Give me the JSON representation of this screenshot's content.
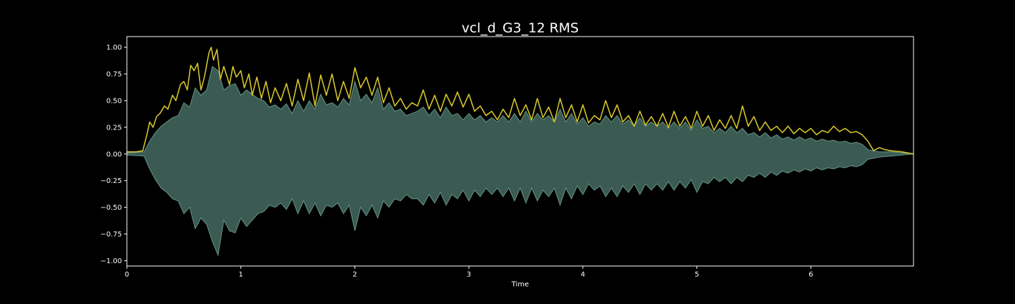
{
  "chart_data": {
    "type": "line",
    "title": "vcl_d_G3_12 RMS",
    "xlabel": "Time",
    "ylabel": "",
    "xlim": [
      0,
      6.9
    ],
    "ylim": [
      -1.05,
      1.1
    ],
    "xticks": [
      0,
      1,
      2,
      3,
      4,
      5,
      6
    ],
    "xtick_labels": [
      "0",
      "1",
      "2",
      "3",
      "4",
      "5",
      "6"
    ],
    "yticks": [
      -1.0,
      -0.75,
      -0.5,
      -0.25,
      0.0,
      0.25,
      0.5,
      0.75,
      1.0
    ],
    "ytick_labels": [
      "−1.00",
      "−0.75",
      "−0.50",
      "−0.25",
      "0.00",
      "0.25",
      "0.50",
      "0.75",
      "1.00"
    ],
    "grid": false,
    "background": "#000000",
    "colors": {
      "waveform_fill": "#3b5a52",
      "waveform_edge": "#6fa898",
      "rms_line": "#d4c42a",
      "axes": "#ffffff"
    },
    "series": [
      {
        "kind": "waveform",
        "x": [
          0,
          0.15,
          0.2,
          0.25,
          0.3,
          0.35,
          0.4,
          0.45,
          0.5,
          0.55,
          0.6,
          0.65,
          0.7,
          0.75,
          0.8,
          0.85,
          0.9,
          0.95,
          1.0,
          1.05,
          1.1,
          1.15,
          1.2,
          1.25,
          1.3,
          1.35,
          1.4,
          1.45,
          1.5,
          1.55,
          1.6,
          1.65,
          1.7,
          1.75,
          1.8,
          1.85,
          1.9,
          1.95,
          2.0,
          2.05,
          2.1,
          2.15,
          2.2,
          2.25,
          2.3,
          2.35,
          2.4,
          2.45,
          2.5,
          2.55,
          2.6,
          2.65,
          2.7,
          2.75,
          2.8,
          2.85,
          2.9,
          2.95,
          3.0,
          3.05,
          3.1,
          3.15,
          3.2,
          3.25,
          3.3,
          3.35,
          3.4,
          3.45,
          3.5,
          3.55,
          3.6,
          3.65,
          3.7,
          3.75,
          3.8,
          3.85,
          3.9,
          3.95,
          4.0,
          4.05,
          4.1,
          4.15,
          4.2,
          4.25,
          4.3,
          4.35,
          4.4,
          4.45,
          4.5,
          4.55,
          4.6,
          4.65,
          4.7,
          4.75,
          4.8,
          4.85,
          4.9,
          4.95,
          5.0,
          5.05,
          5.1,
          5.15,
          5.2,
          5.25,
          5.3,
          5.35,
          5.4,
          5.45,
          5.5,
          5.55,
          5.6,
          5.65,
          5.7,
          5.75,
          5.8,
          5.85,
          5.9,
          5.95,
          6.0,
          6.05,
          6.1,
          6.15,
          6.2,
          6.25,
          6.3,
          6.35,
          6.4,
          6.45,
          6.5,
          6.6,
          6.7,
          6.9
        ],
        "upper": [
          0.01,
          0.02,
          0.12,
          0.2,
          0.26,
          0.3,
          0.34,
          0.36,
          0.48,
          0.44,
          0.62,
          0.55,
          0.6,
          0.82,
          0.78,
          0.6,
          0.64,
          0.66,
          0.55,
          0.6,
          0.56,
          0.52,
          0.5,
          0.44,
          0.46,
          0.42,
          0.47,
          0.38,
          0.5,
          0.4,
          0.5,
          0.42,
          0.56,
          0.46,
          0.48,
          0.44,
          0.52,
          0.46,
          0.68,
          0.5,
          0.56,
          0.48,
          0.62,
          0.42,
          0.48,
          0.4,
          0.42,
          0.36,
          0.38,
          0.4,
          0.44,
          0.36,
          0.42,
          0.34,
          0.44,
          0.36,
          0.38,
          0.32,
          0.38,
          0.32,
          0.36,
          0.3,
          0.34,
          0.3,
          0.36,
          0.3,
          0.38,
          0.3,
          0.4,
          0.3,
          0.38,
          0.32,
          0.36,
          0.3,
          0.42,
          0.3,
          0.38,
          0.28,
          0.34,
          0.26,
          0.3,
          0.28,
          0.36,
          0.3,
          0.36,
          0.28,
          0.32,
          0.26,
          0.34,
          0.26,
          0.3,
          0.26,
          0.3,
          0.24,
          0.3,
          0.24,
          0.3,
          0.22,
          0.32,
          0.24,
          0.26,
          0.2,
          0.24,
          0.2,
          0.26,
          0.2,
          0.24,
          0.18,
          0.2,
          0.16,
          0.2,
          0.15,
          0.18,
          0.14,
          0.16,
          0.13,
          0.16,
          0.13,
          0.15,
          0.12,
          0.14,
          0.12,
          0.13,
          0.11,
          0.12,
          0.1,
          0.11,
          0.09,
          0.04,
          0.02,
          0.02,
          0.0
        ],
        "lower": [
          -0.01,
          -0.02,
          -0.14,
          -0.24,
          -0.32,
          -0.36,
          -0.42,
          -0.44,
          -0.56,
          -0.5,
          -0.7,
          -0.6,
          -0.66,
          -0.82,
          -0.95,
          -0.62,
          -0.72,
          -0.74,
          -0.6,
          -0.68,
          -0.62,
          -0.56,
          -0.54,
          -0.48,
          -0.5,
          -0.46,
          -0.52,
          -0.42,
          -0.56,
          -0.44,
          -0.56,
          -0.46,
          -0.58,
          -0.48,
          -0.5,
          -0.46,
          -0.56,
          -0.48,
          -0.72,
          -0.5,
          -0.58,
          -0.48,
          -0.6,
          -0.44,
          -0.5,
          -0.42,
          -0.44,
          -0.38,
          -0.42,
          -0.42,
          -0.48,
          -0.38,
          -0.46,
          -0.36,
          -0.48,
          -0.38,
          -0.42,
          -0.34,
          -0.44,
          -0.34,
          -0.4,
          -0.32,
          -0.38,
          -0.32,
          -0.4,
          -0.32,
          -0.44,
          -0.32,
          -0.46,
          -0.32,
          -0.44,
          -0.34,
          -0.4,
          -0.32,
          -0.48,
          -0.32,
          -0.42,
          -0.3,
          -0.38,
          -0.28,
          -0.34,
          -0.3,
          -0.4,
          -0.32,
          -0.4,
          -0.3,
          -0.36,
          -0.28,
          -0.38,
          -0.28,
          -0.34,
          -0.28,
          -0.34,
          -0.26,
          -0.34,
          -0.26,
          -0.32,
          -0.24,
          -0.36,
          -0.26,
          -0.28,
          -0.22,
          -0.26,
          -0.22,
          -0.28,
          -0.22,
          -0.26,
          -0.2,
          -0.22,
          -0.18,
          -0.22,
          -0.17,
          -0.2,
          -0.16,
          -0.18,
          -0.15,
          -0.17,
          -0.14,
          -0.16,
          -0.13,
          -0.15,
          -0.13,
          -0.14,
          -0.12,
          -0.13,
          -0.11,
          -0.12,
          -0.1,
          -0.05,
          -0.03,
          -0.02,
          0.0
        ]
      },
      {
        "kind": "rms",
        "x": [
          0,
          0.08,
          0.14,
          0.18,
          0.2,
          0.23,
          0.26,
          0.29,
          0.33,
          0.36,
          0.4,
          0.43,
          0.47,
          0.5,
          0.53,
          0.56,
          0.59,
          0.62,
          0.65,
          0.68,
          0.72,
          0.74,
          0.76,
          0.79,
          0.82,
          0.85,
          0.88,
          0.9,
          0.93,
          0.96,
          1.0,
          1.03,
          1.07,
          1.1,
          1.14,
          1.18,
          1.22,
          1.26,
          1.3,
          1.35,
          1.4,
          1.45,
          1.5,
          1.55,
          1.6,
          1.65,
          1.7,
          1.75,
          1.8,
          1.85,
          1.9,
          1.95,
          2.0,
          2.05,
          2.1,
          2.15,
          2.2,
          2.25,
          2.3,
          2.35,
          2.4,
          2.45,
          2.5,
          2.55,
          2.6,
          2.65,
          2.7,
          2.75,
          2.8,
          2.85,
          2.9,
          2.95,
          3.0,
          3.05,
          3.1,
          3.15,
          3.2,
          3.25,
          3.3,
          3.35,
          3.4,
          3.45,
          3.5,
          3.55,
          3.6,
          3.65,
          3.7,
          3.75,
          3.8,
          3.85,
          3.9,
          3.95,
          4.0,
          4.05,
          4.1,
          4.15,
          4.2,
          4.25,
          4.3,
          4.35,
          4.4,
          4.45,
          4.5,
          4.55,
          4.6,
          4.65,
          4.7,
          4.75,
          4.8,
          4.85,
          4.9,
          4.95,
          5.0,
          5.05,
          5.1,
          5.15,
          5.2,
          5.25,
          5.3,
          5.35,
          5.4,
          5.45,
          5.5,
          5.55,
          5.6,
          5.65,
          5.7,
          5.75,
          5.8,
          5.85,
          5.9,
          5.95,
          6.0,
          6.05,
          6.1,
          6.15,
          6.2,
          6.25,
          6.3,
          6.35,
          6.4,
          6.45,
          6.5,
          6.55,
          6.6,
          6.65,
          6.7,
          6.8,
          6.9
        ],
        "y": [
          0.02,
          0.02,
          0.03,
          0.2,
          0.3,
          0.25,
          0.35,
          0.38,
          0.45,
          0.42,
          0.55,
          0.5,
          0.65,
          0.68,
          0.6,
          0.83,
          0.78,
          0.85,
          0.6,
          0.72,
          0.95,
          1.0,
          0.88,
          0.98,
          0.7,
          0.82,
          0.72,
          0.65,
          0.82,
          0.72,
          0.78,
          0.62,
          0.75,
          0.55,
          0.72,
          0.52,
          0.68,
          0.48,
          0.62,
          0.5,
          0.66,
          0.45,
          0.7,
          0.5,
          0.76,
          0.45,
          0.74,
          0.55,
          0.75,
          0.5,
          0.68,
          0.52,
          0.81,
          0.62,
          0.72,
          0.55,
          0.72,
          0.48,
          0.62,
          0.45,
          0.52,
          0.42,
          0.48,
          0.45,
          0.6,
          0.42,
          0.55,
          0.4,
          0.56,
          0.45,
          0.58,
          0.44,
          0.56,
          0.4,
          0.45,
          0.36,
          0.4,
          0.32,
          0.42,
          0.34,
          0.52,
          0.36,
          0.46,
          0.32,
          0.52,
          0.34,
          0.44,
          0.3,
          0.52,
          0.34,
          0.46,
          0.3,
          0.46,
          0.29,
          0.36,
          0.32,
          0.5,
          0.34,
          0.46,
          0.3,
          0.36,
          0.26,
          0.4,
          0.27,
          0.35,
          0.26,
          0.38,
          0.25,
          0.4,
          0.26,
          0.35,
          0.24,
          0.4,
          0.26,
          0.36,
          0.22,
          0.32,
          0.24,
          0.36,
          0.24,
          0.45,
          0.26,
          0.35,
          0.22,
          0.3,
          0.22,
          0.26,
          0.2,
          0.26,
          0.19,
          0.24,
          0.2,
          0.24,
          0.18,
          0.22,
          0.2,
          0.26,
          0.21,
          0.24,
          0.2,
          0.21,
          0.18,
          0.12,
          0.03,
          0.06,
          0.04,
          0.03,
          0.02,
          0.0
        ]
      }
    ]
  }
}
